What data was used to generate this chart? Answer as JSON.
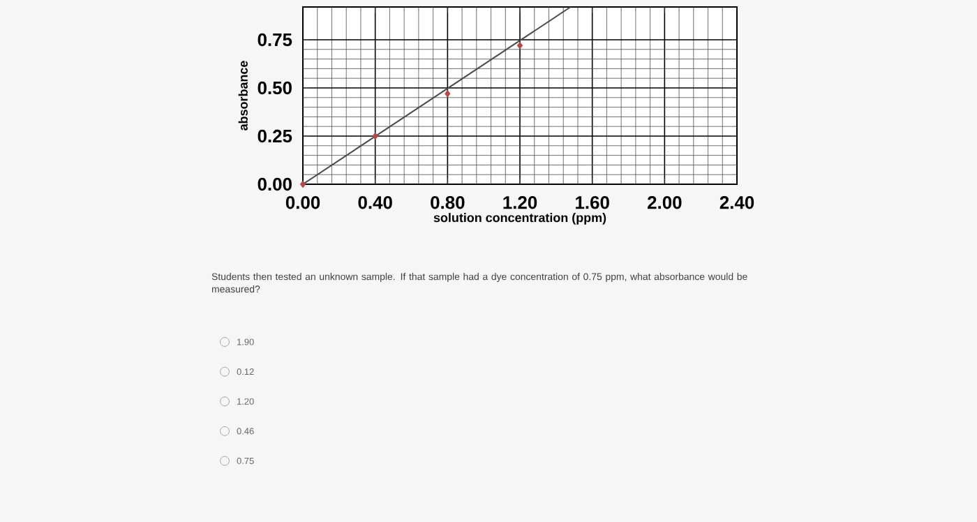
{
  "chart_data": {
    "type": "scatter",
    "xlabel": "solution concentration (ppm)",
    "ylabel": "absorbance",
    "xlim": [
      0,
      2.4
    ],
    "ylim": [
      0,
      0.92
    ],
    "xticks": [
      {
        "value": 0,
        "label": "0.00"
      },
      {
        "value": 0.4,
        "label": "0.40"
      },
      {
        "value": 0.8,
        "label": "0.80"
      },
      {
        "value": 1.2,
        "label": "1.20"
      },
      {
        "value": 1.6,
        "label": "1.60"
      },
      {
        "value": 2.0,
        "label": "2.00"
      },
      {
        "value": 2.4,
        "label": "2.40"
      }
    ],
    "yticks": [
      {
        "value": 0,
        "label": "0.00"
      },
      {
        "value": 0.25,
        "label": "0.25"
      },
      {
        "value": 0.5,
        "label": "0.50"
      },
      {
        "value": 0.75,
        "label": "0.75"
      }
    ],
    "grid": true,
    "marker": "diamond",
    "series": [
      {
        "type": "line",
        "color": "#4a4a4a",
        "x": [
          0,
          1.48
        ],
        "values": [
          0,
          0.92
        ],
        "marker": "none"
      },
      {
        "color": "#b5474b",
        "x": [
          0,
          0.4,
          0.8,
          1.2
        ],
        "values": [
          0,
          0.25,
          0.47,
          0.72
        ]
      }
    ],
    "annotations": [
      "Students then tested an unknown sample. If that sample had a dye concentration of 0.75 ppm, what absorbance would be measured?",
      "1.90",
      "0.12",
      "1.20",
      "0.46",
      "0.75"
    ]
  }
}
